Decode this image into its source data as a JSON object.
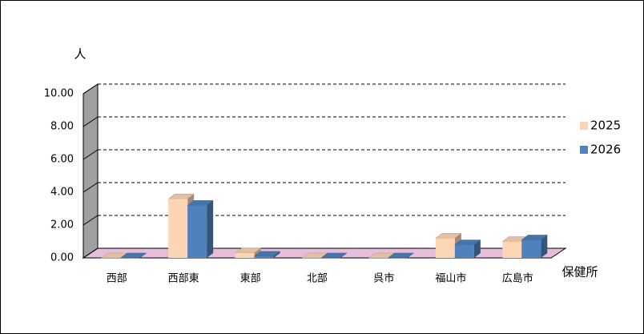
{
  "chart_data": {
    "type": "bar3d",
    "y_label": "人",
    "x_label": "保健所",
    "categories": [
      "西部",
      "西部東",
      "東部",
      "北部",
      "呉市",
      "福山市",
      "広島市"
    ],
    "series": [
      {
        "name": "2025",
        "color": "#fcd5b5",
        "values": [
          0,
          3.6,
          0.3,
          0,
          0,
          1.2,
          1.0
        ]
      },
      {
        "name": "2026",
        "color": "#4f81bd",
        "values": [
          0,
          3.2,
          0.1,
          0,
          0,
          0.8,
          1.1
        ]
      }
    ],
    "ylim": [
      0,
      10
    ],
    "yticks": [
      {
        "value": 0,
        "label": "0.00"
      },
      {
        "value": 2,
        "label": "2.00"
      },
      {
        "value": 4,
        "label": "4.00"
      },
      {
        "value": 6,
        "label": "6.00"
      },
      {
        "value": 8,
        "label": "8.00"
      },
      {
        "value": 10,
        "label": "10.00"
      }
    ],
    "grid": true,
    "legend": "right"
  }
}
